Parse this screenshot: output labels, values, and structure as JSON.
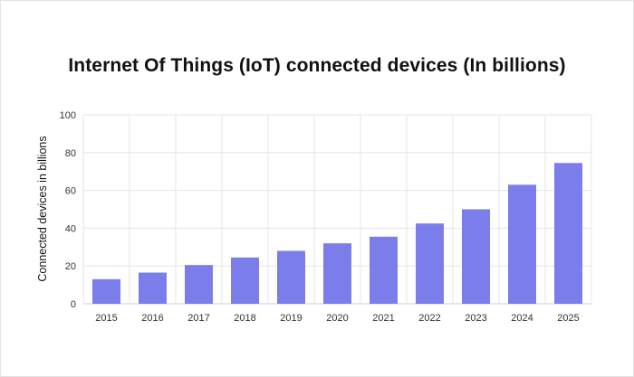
{
  "chart_data": {
    "type": "bar",
    "title": "Internet Of Things (IoT) connected devices (In billions)",
    "xlabel": "",
    "ylabel": "Connected devices in billions",
    "categories": [
      "2015",
      "2016",
      "2017",
      "2018",
      "2019",
      "2020",
      "2021",
      "2022",
      "2023",
      "2024",
      "2025"
    ],
    "values": [
      13,
      16.5,
      20.5,
      24.5,
      28,
      32,
      35.5,
      42.5,
      50,
      63,
      74.5
    ],
    "ylim": [
      0,
      100
    ],
    "yticks": [
      "0",
      "20",
      "40",
      "60",
      "80",
      "100"
    ],
    "grid": true,
    "legend": "none",
    "bar_color": "#7b7deb",
    "grid_color": "#e6e6e6"
  }
}
